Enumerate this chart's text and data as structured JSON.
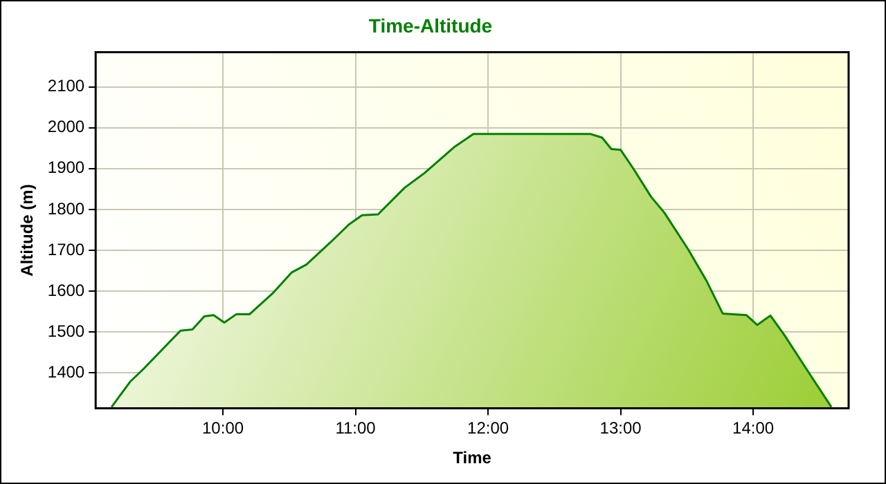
{
  "chart_data": {
    "type": "area",
    "title": "Time-Altitude",
    "xlabel": "Time",
    "ylabel": "Altitude (m)",
    "x": [
      9.16,
      9.3,
      9.4,
      9.68,
      9.77,
      9.86,
      9.93,
      10.01,
      10.1,
      10.2,
      10.38,
      10.52,
      10.63,
      10.81,
      10.95,
      11.05,
      11.17,
      11.37,
      11.52,
      11.65,
      11.75,
      11.89,
      12.1,
      12.77,
      12.86,
      12.93,
      13.0,
      13.1,
      13.23,
      13.33,
      13.51,
      13.65,
      13.77,
      13.95,
      14.03,
      14.13,
      14.24,
      14.42,
      14.59
    ],
    "series": [
      {
        "color": "#008000",
        "values": [
          1316,
          1378,
          1409,
          1503,
          1506,
          1538,
          1541,
          1523,
          1543,
          1543,
          1596,
          1646,
          1665,
          1719,
          1763,
          1786,
          1788,
          1853,
          1889,
          1926,
          1954,
          1985,
          1985,
          1985,
          1976,
          1948,
          1946,
          1898,
          1831,
          1792,
          1702,
          1624,
          1545,
          1541,
          1517,
          1540,
          1490,
          1400,
          1316
        ]
      }
    ],
    "xlim": [
      9.04,
      14.72
    ],
    "xticks": [
      {
        "value": 10,
        "label": "10:00"
      },
      {
        "value": 11,
        "label": "11:00"
      },
      {
        "value": 12,
        "label": "12:00"
      },
      {
        "value": 13,
        "label": "13:00"
      },
      {
        "value": 14,
        "label": "14:00"
      }
    ],
    "ylim": [
      1313,
      2185
    ],
    "yticks": [
      1400,
      1500,
      1600,
      1700,
      1800,
      1900,
      2000,
      2100
    ],
    "grid": true,
    "legend": false,
    "marker": "none",
    "line_style": "solid"
  }
}
